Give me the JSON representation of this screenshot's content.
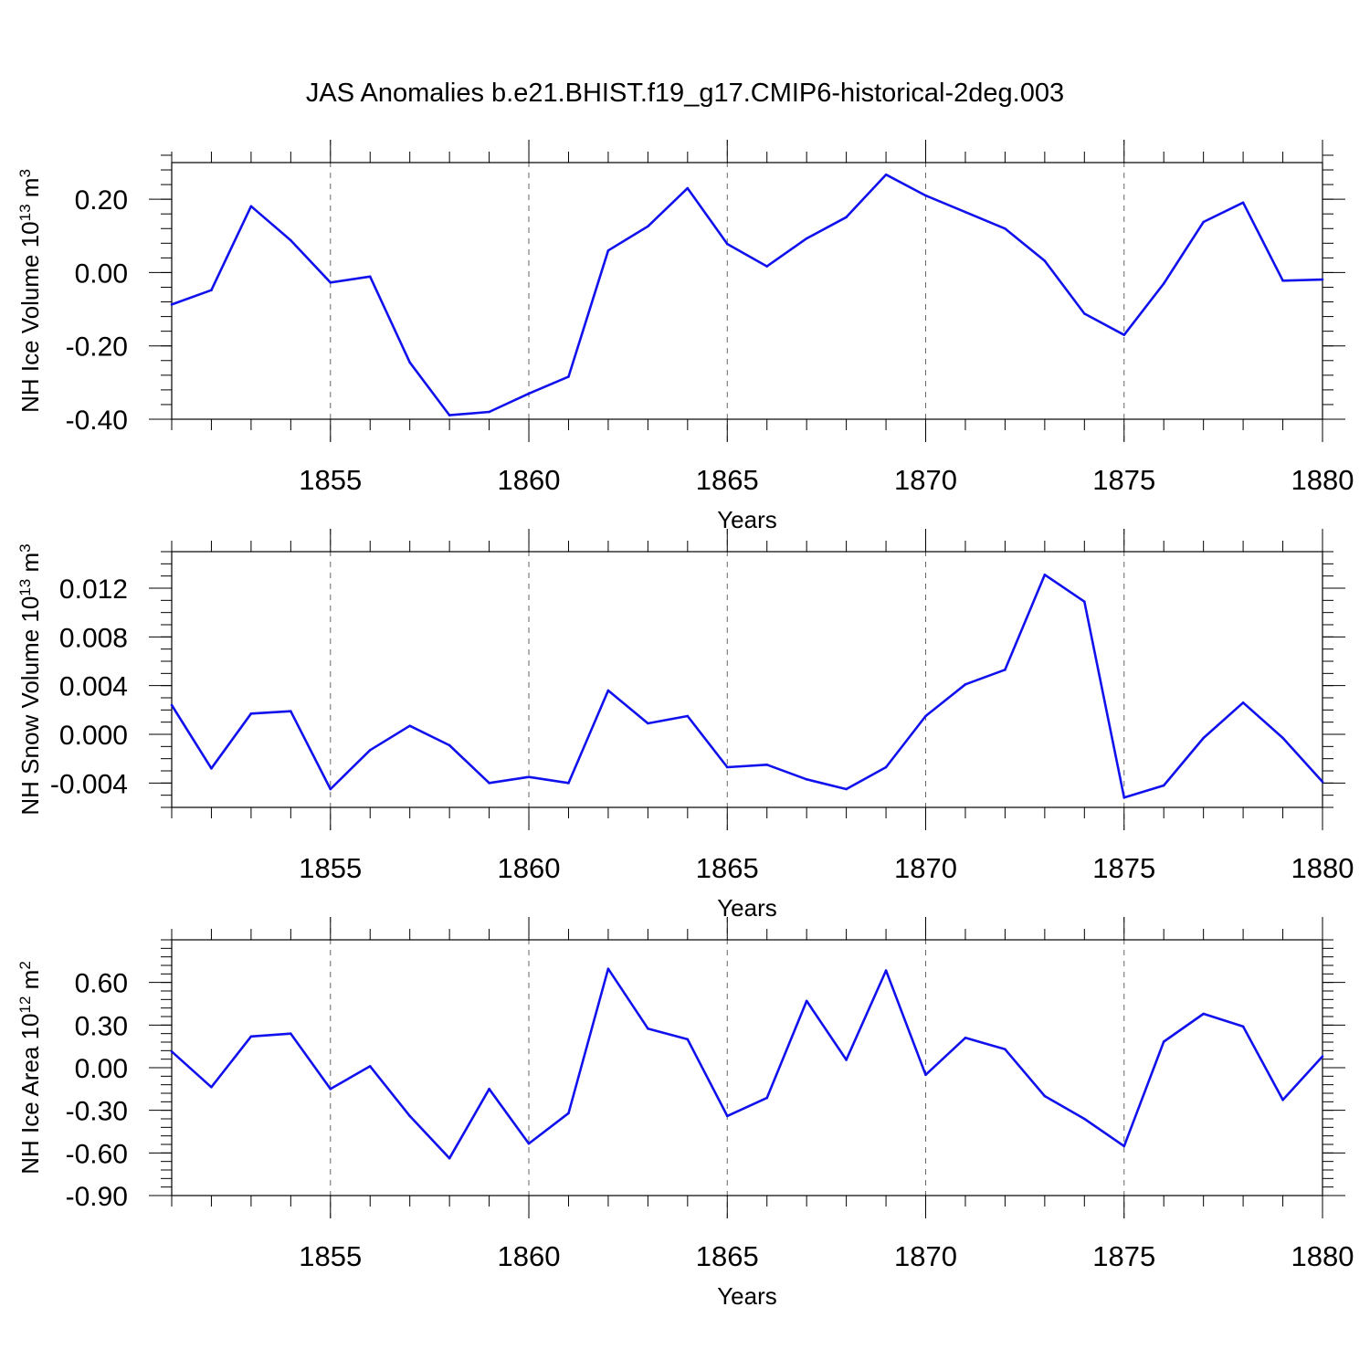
{
  "title": "JAS Anomalies b.e21.BHIST.f19_g17.CMIP6-historical-2deg.003",
  "colors": {
    "line": "#1111ee",
    "axis": "#000000",
    "grid": "#666666"
  },
  "chart_data": [
    {
      "type": "line",
      "ylabel": "NH Ice Volume 10",
      "ylabel_exp": "13",
      "ylabel_unit": " m",
      "ylabel_unit_exp": "3",
      "xlabel": "Years",
      "xlim": [
        1851,
        1880
      ],
      "ylim": [
        -0.4,
        0.3
      ],
      "yticks": [
        -0.4,
        -0.2,
        0.0,
        0.2
      ],
      "ytick_labels": [
        "-0.40",
        "-0.20",
        "0.00",
        "0.20"
      ],
      "yminor_step": 0.04,
      "xticks": [
        1855,
        1860,
        1865,
        1870,
        1875,
        1880
      ],
      "xtick_labels": [
        "1855",
        "1860",
        "1865",
        "1870",
        "1875",
        "1880"
      ],
      "series": [
        {
          "name": "NH Ice Volume",
          "x": [
            1851,
            1852,
            1853,
            1854,
            1855,
            1856,
            1857,
            1858,
            1859,
            1860,
            1861,
            1862,
            1863,
            1864,
            1865,
            1866,
            1867,
            1868,
            1869,
            1870,
            1871,
            1872,
            1873,
            1874,
            1875,
            1876,
            1877,
            1878,
            1879,
            1880
          ],
          "values": [
            -0.087,
            -0.048,
            0.181,
            0.088,
            -0.027,
            -0.011,
            -0.245,
            -0.389,
            -0.38,
            -0.33,
            -0.284,
            0.06,
            0.126,
            0.23,
            0.078,
            0.017,
            0.093,
            0.151,
            0.267,
            0.21,
            0.165,
            0.12,
            0.032,
            -0.112,
            -0.17,
            -0.03,
            0.138,
            0.191,
            -0.022,
            -0.019
          ]
        }
      ]
    },
    {
      "type": "line",
      "ylabel": "NH Snow Volume 10",
      "ylabel_exp": "13",
      "ylabel_unit": " m",
      "ylabel_unit_exp": "3",
      "xlabel": "Years",
      "xlim": [
        1851,
        1880
      ],
      "ylim": [
        -0.006,
        0.015
      ],
      "yticks": [
        -0.004,
        0.0,
        0.004,
        0.008,
        0.012
      ],
      "ytick_labels": [
        "-0.004",
        "0.000",
        "0.004",
        "0.008",
        "0.012"
      ],
      "yminor_step": 0.001,
      "xticks": [
        1855,
        1860,
        1865,
        1870,
        1875,
        1880
      ],
      "xtick_labels": [
        "1855",
        "1860",
        "1865",
        "1870",
        "1875",
        "1880"
      ],
      "series": [
        {
          "name": "NH Snow Volume",
          "x": [
            1851,
            1852,
            1853,
            1854,
            1855,
            1856,
            1857,
            1858,
            1859,
            1860,
            1861,
            1862,
            1863,
            1864,
            1865,
            1866,
            1867,
            1868,
            1869,
            1870,
            1871,
            1872,
            1873,
            1874,
            1875,
            1876,
            1877,
            1878,
            1879,
            1880
          ],
          "values": [
            0.0024,
            -0.0028,
            0.0017,
            0.0019,
            -0.0045,
            -0.0013,
            0.0007,
            -0.0009,
            -0.004,
            -0.0035,
            -0.004,
            0.0036,
            0.0009,
            0.0015,
            -0.0027,
            -0.0025,
            -0.0037,
            -0.0045,
            -0.0027,
            0.0015,
            0.0041,
            0.0053,
            0.0131,
            0.0109,
            -0.0052,
            -0.0042,
            -0.0003,
            0.0026,
            -0.0003,
            -0.0039
          ]
        }
      ]
    },
    {
      "type": "line",
      "ylabel": "NH Ice Area 10",
      "ylabel_exp": "12",
      "ylabel_unit": " m",
      "ylabel_unit_exp": "2",
      "xlabel": "Years",
      "xlim": [
        1851,
        1880
      ],
      "ylim": [
        -0.9,
        0.9
      ],
      "yticks": [
        -0.9,
        -0.6,
        -0.3,
        0.0,
        0.3,
        0.6
      ],
      "ytick_labels": [
        "-0.90",
        "-0.60",
        "-0.30",
        "0.00",
        "0.30",
        "0.60"
      ],
      "yminor_step": 0.06,
      "xticks": [
        1855,
        1860,
        1865,
        1870,
        1875,
        1880
      ],
      "xtick_labels": [
        "1855",
        "1860",
        "1865",
        "1870",
        "1875",
        "1880"
      ],
      "series": [
        {
          "name": "NH Ice Area",
          "x": [
            1851,
            1852,
            1853,
            1854,
            1855,
            1856,
            1857,
            1858,
            1859,
            1860,
            1861,
            1862,
            1863,
            1864,
            1865,
            1866,
            1867,
            1868,
            1869,
            1870,
            1871,
            1872,
            1873,
            1874,
            1875,
            1876,
            1877,
            1878,
            1879,
            1880
          ],
          "values": [
            0.114,
            -0.137,
            0.22,
            0.24,
            -0.15,
            0.01,
            -0.34,
            -0.638,
            -0.15,
            -0.534,
            -0.32,
            0.696,
            0.275,
            0.2,
            -0.34,
            -0.213,
            0.47,
            0.055,
            0.684,
            -0.05,
            0.21,
            0.13,
            -0.2,
            -0.36,
            -0.552,
            0.183,
            0.379,
            0.29,
            -0.227,
            0.08
          ]
        }
      ]
    }
  ]
}
